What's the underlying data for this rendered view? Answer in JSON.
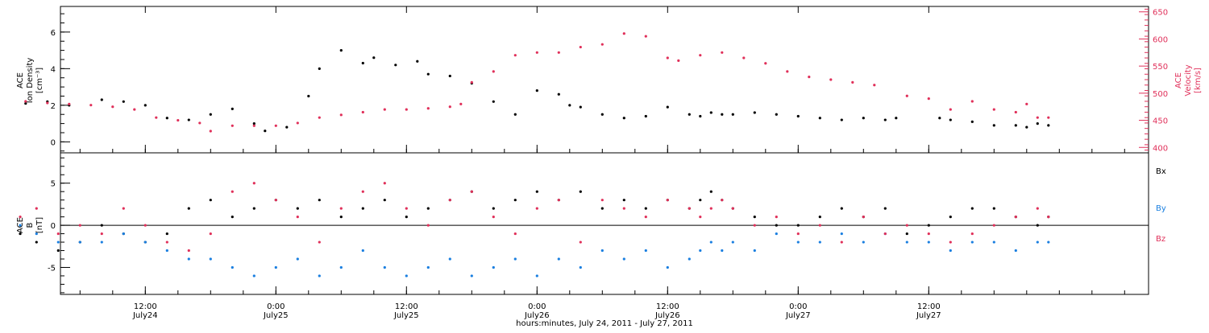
{
  "colors": {
    "black": "#000000",
    "red": "#e0305a",
    "blue": "#1a7fe0"
  },
  "chart_data": [
    {
      "type": "scatter",
      "panel": "top",
      "ylabel_left": [
        "ACE",
        "Ion Density",
        "[cm⁻³]"
      ],
      "ylabel_right": [
        "ACE",
        "Velocity",
        "[km/s]"
      ],
      "ylim_left": [
        -0.6,
        7.4
      ],
      "ylim_right": [
        390,
        660
      ],
      "yticks_left": [
        0,
        2,
        4,
        6
      ],
      "yticks_right": [
        400,
        450,
        500,
        550,
        600,
        650
      ],
      "series": [
        {
          "color": "black",
          "axis": "left",
          "x_hours": [
            1,
            3,
            5,
            8,
            10,
            12,
            14,
            16,
            18,
            20,
            22,
            23,
            25,
            27,
            28,
            30,
            32,
            33,
            35,
            37,
            38,
            40,
            42,
            44,
            46,
            48,
            50,
            51,
            52,
            54,
            56,
            58,
            60,
            62,
            63,
            64,
            65,
            66,
            68,
            70,
            72,
            74,
            76,
            78,
            80,
            81,
            85,
            86,
            88,
            90,
            92,
            93,
            94,
            95
          ],
          "values": [
            2.1,
            2.2,
            2.0,
            2.3,
            2.2,
            2.0,
            1.3,
            1.2,
            1.5,
            1.8,
            1.0,
            0.6,
            0.8,
            2.5,
            4.0,
            5.0,
            4.3,
            4.6,
            4.2,
            4.4,
            3.7,
            3.6,
            3.2,
            2.2,
            1.5,
            2.8,
            2.6,
            2.0,
            1.9,
            1.5,
            1.3,
            1.4,
            1.9,
            1.5,
            1.4,
            1.6,
            1.5,
            1.5,
            1.6,
            1.5,
            1.4,
            1.3,
            1.2,
            1.3,
            1.2,
            1.3,
            1.3,
            1.2,
            1.1,
            0.9,
            0.9,
            0.8,
            1.0,
            0.9
          ]
        },
        {
          "color": "red",
          "axis": "right",
          "x_hours": [
            1,
            3,
            5,
            7,
            9,
            11,
            13,
            15,
            17,
            18,
            20,
            22,
            24,
            26,
            28,
            30,
            32,
            34,
            36,
            38,
            40,
            41,
            42,
            44,
            46,
            48,
            50,
            52,
            54,
            56,
            58,
            60,
            61,
            63,
            65,
            67,
            69,
            71,
            73,
            75,
            77,
            79,
            82,
            84,
            86,
            88,
            90,
            92,
            93,
            94,
            95
          ],
          "values": [
            485,
            482,
            480,
            478,
            475,
            470,
            455,
            450,
            445,
            430,
            440,
            440,
            440,
            445,
            455,
            460,
            465,
            470,
            470,
            472,
            475,
            480,
            520,
            540,
            570,
            575,
            575,
            585,
            590,
            610,
            605,
            565,
            560,
            570,
            575,
            565,
            555,
            540,
            530,
            525,
            520,
            515,
            495,
            490,
            470,
            485,
            470,
            465,
            480,
            455,
            455
          ]
        }
      ]
    },
    {
      "type": "scatter",
      "panel": "bottom",
      "ylabel_left": [
        "ACE",
        "B",
        "[nT]"
      ],
      "ylim": [
        -8.2,
        8.6
      ],
      "yticks": [
        -5,
        0,
        5
      ],
      "legend": [
        {
          "label": "Bx",
          "color": "black"
        },
        {
          "label": "By",
          "color": "blue"
        },
        {
          "label": "Bz",
          "color": "red"
        }
      ],
      "x_ticks": [
        {
          "hours": 12,
          "time": "12:00",
          "date": "July24"
        },
        {
          "hours": 24,
          "time": "0:00",
          "date": "July25"
        },
        {
          "hours": 36,
          "time": "12:00",
          "date": "July25"
        },
        {
          "hours": 48,
          "time": "0:00",
          "date": "July26"
        },
        {
          "hours": 60,
          "time": "12:00",
          "date": "July26"
        },
        {
          "hours": 72,
          "time": "0:00",
          "date": "July27"
        },
        {
          "hours": 84,
          "time": "12:00",
          "date": "July27"
        }
      ],
      "xlim_hours": [
        4.2,
        104.2
      ],
      "xlabel": "hours:minutes, July 24, 2011 - July 27, 2011",
      "series": [
        {
          "color": "black",
          "x_hours": [
            0.5,
            2,
            4,
            6,
            8,
            10,
            12,
            14,
            16,
            18,
            20,
            22,
            24,
            26,
            28,
            30,
            32,
            34,
            36,
            38,
            40,
            42,
            44,
            46,
            48,
            50,
            52,
            54,
            56,
            58,
            60,
            62,
            63,
            64,
            65,
            66,
            68,
            70,
            72,
            74,
            76,
            78,
            80,
            82,
            84,
            86,
            88,
            90,
            92,
            94,
            95
          ],
          "values": [
            -1,
            -2,
            -3,
            -2,
            0,
            -1,
            -2,
            -1,
            2,
            3,
            1,
            2,
            3,
            2,
            3,
            1,
            2,
            3,
            1,
            2,
            3,
            4,
            2,
            3,
            4,
            3,
            4,
            2,
            3,
            2,
            3,
            2,
            3,
            4,
            3,
            2,
            1,
            0,
            0,
            1,
            2,
            1,
            2,
            -1,
            0,
            1,
            2,
            2,
            1,
            0,
            1
          ]
        },
        {
          "color": "blue",
          "x_hours": [
            0.5,
            2,
            4,
            6,
            8,
            10,
            12,
            14,
            16,
            18,
            20,
            22,
            24,
            26,
            28,
            30,
            32,
            34,
            36,
            38,
            40,
            42,
            44,
            46,
            48,
            50,
            52,
            54,
            56,
            58,
            60,
            62,
            63,
            64,
            65,
            66,
            68,
            70,
            72,
            74,
            76,
            78,
            80,
            82,
            84,
            86,
            88,
            90,
            92,
            94,
            95
          ],
          "values": [
            0,
            -1,
            -2,
            -2,
            -2,
            -1,
            -2,
            -3,
            -4,
            -4,
            -5,
            -6,
            -5,
            -4,
            -6,
            -5,
            -3,
            -5,
            -6,
            -5,
            -4,
            -6,
            -5,
            -4,
            -6,
            -4,
            -5,
            -3,
            -4,
            -3,
            -5,
            -4,
            -3,
            -2,
            -3,
            -2,
            -3,
            -1,
            -2,
            -2,
            -1,
            -2,
            -1,
            -2,
            -2,
            -3,
            -2,
            -2,
            -3,
            -2,
            -2
          ]
        },
        {
          "color": "red",
          "x_hours": [
            0.5,
            2,
            4,
            6,
            8,
            10,
            12,
            14,
            16,
            18,
            20,
            22,
            24,
            26,
            28,
            30,
            32,
            34,
            36,
            38,
            40,
            42,
            44,
            46,
            48,
            50,
            52,
            54,
            56,
            58,
            60,
            62,
            63,
            64,
            65,
            66,
            68,
            70,
            72,
            74,
            76,
            78,
            80,
            82,
            84,
            86,
            88,
            90,
            92,
            94,
            95
          ],
          "values": [
            1,
            2,
            -1,
            0,
            -1,
            2,
            0,
            -2,
            -3,
            -1,
            4,
            5,
            3,
            1,
            -2,
            2,
            4,
            5,
            2,
            0,
            3,
            4,
            1,
            -1,
            2,
            3,
            -2,
            3,
            2,
            1,
            3,
            2,
            1,
            2,
            3,
            2,
            0,
            1,
            -1,
            0,
            -2,
            1,
            -1,
            0,
            -1,
            -2,
            -1,
            0,
            1,
            2,
            1
          ]
        }
      ]
    }
  ]
}
